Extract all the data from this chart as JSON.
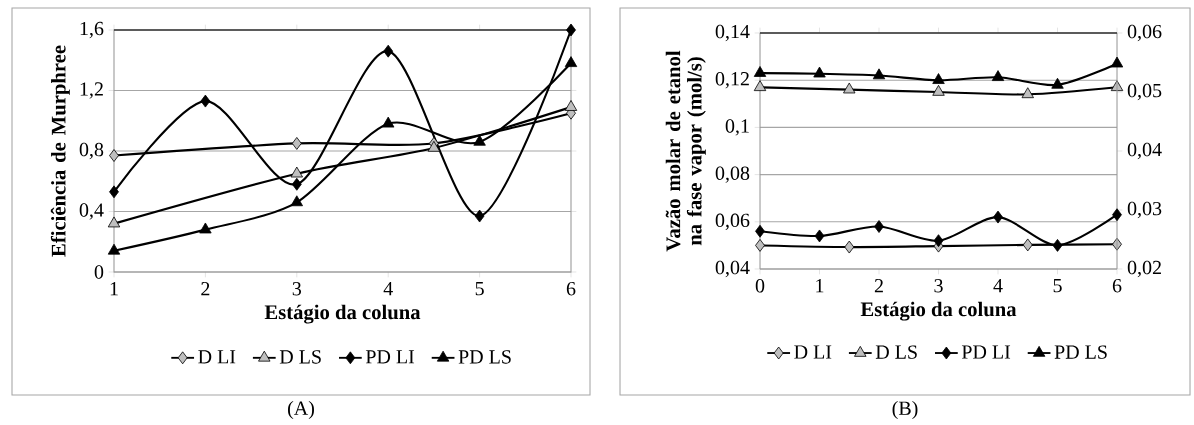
{
  "chart_data": [
    {
      "type": "line",
      "xlabel": "Estágio da coluna",
      "ylabel": "Eficiência de Murphree",
      "xlim": [
        1,
        6
      ],
      "xticks": [
        1,
        2,
        3,
        4,
        5,
        6
      ],
      "ylim": [
        0,
        1.6
      ],
      "yticks": [
        0,
        {
          "value": 0.4,
          "label": "0,4"
        },
        {
          "value": 0.8,
          "label": "0,8"
        },
        {
          "value": 1.2,
          "label": "1,2"
        },
        {
          "value": 1.6,
          "label": "1,6"
        }
      ],
      "grid": "y",
      "legend": "bottom",
      "line_style": "solid",
      "annotations": [
        "(A)"
      ],
      "series": [
        {
          "name": "D LI",
          "color": "#bfbfbf",
          "marker": "diamond",
          "x": [
            1,
            3,
            4.5,
            6
          ],
          "values": [
            0.77,
            0.85,
            0.85,
            1.05
          ]
        },
        {
          "name": "D LS",
          "color": "#bfbfbf",
          "marker": "triangle",
          "x": [
            1,
            3,
            4.5,
            6
          ],
          "values": [
            0.32,
            0.65,
            0.82,
            1.09
          ]
        },
        {
          "name": "PD LI",
          "color": "#000000",
          "marker": "diamond",
          "x": [
            1,
            2,
            3,
            4,
            5,
            6
          ],
          "values": [
            0.53,
            1.13,
            0.58,
            1.46,
            0.37,
            1.6
          ]
        },
        {
          "name": "PD LS",
          "color": "#000000",
          "marker": "triangle",
          "x": [
            1,
            2,
            3,
            4,
            5,
            6
          ],
          "values": [
            0.14,
            0.28,
            0.46,
            0.98,
            0.86,
            1.38
          ]
        }
      ]
    },
    {
      "type": "line",
      "xlabel": "Estágio da coluna",
      "ylabel": "Vazão molar de etanol na fase vapor (mol/s)",
      "xlim": [
        0,
        6
      ],
      "xticks": [
        0,
        1,
        2,
        3,
        4,
        5,
        6
      ],
      "ylim": [
        0.04,
        0.14
      ],
      "yticks": [
        {
          "value": 0.04,
          "label": "0,04"
        },
        {
          "value": 0.06,
          "label": "0,06"
        },
        {
          "value": 0.08,
          "label": "0,08"
        },
        {
          "value": 0.1,
          "label": "0,1"
        },
        {
          "value": 0.12,
          "label": "0,12"
        },
        {
          "value": 0.14,
          "label": "0,14"
        }
      ],
      "y2lim": [
        0.02,
        0.06
      ],
      "y2ticks": [
        {
          "value": 0.02,
          "label": "0,02"
        },
        {
          "value": 0.03,
          "label": "0,03"
        },
        {
          "value": 0.04,
          "label": "0,04"
        },
        {
          "value": 0.05,
          "label": "0,05"
        },
        {
          "value": 0.06,
          "label": "0,06"
        }
      ],
      "grid": "y",
      "legend": "bottom",
      "line_style": "solid",
      "annotations": [
        "(B)"
      ],
      "series": [
        {
          "name": "D LI",
          "color": "#bfbfbf",
          "marker": "diamond",
          "x": [
            0,
            1.5,
            3,
            4.5,
            6
          ],
          "values": [
            0.05,
            0.0493,
            0.0497,
            0.0502,
            0.0505
          ]
        },
        {
          "name": "D LS",
          "color": "#bfbfbf",
          "marker": "triangle",
          "x": [
            0,
            1.5,
            3,
            4.5,
            6
          ],
          "values": [
            0.117,
            0.116,
            0.115,
            0.114,
            0.117
          ]
        },
        {
          "name": "PD LI",
          "color": "#000000",
          "marker": "diamond",
          "axis": "y2",
          "x": [
            0,
            1,
            2,
            3,
            4,
            5,
            6
          ],
          "values": [
            0.0264,
            0.0256,
            0.0272,
            0.0248,
            0.0288,
            0.024,
            0.0292
          ]
        },
        {
          "name": "PD LS",
          "color": "#000000",
          "marker": "triangle",
          "axis": "y2",
          "x": [
            0,
            1,
            2,
            3,
            4,
            5,
            6
          ],
          "values": [
            0.0532,
            0.0531,
            0.0528,
            0.052,
            0.0525,
            0.0512,
            0.0548
          ]
        }
      ]
    }
  ]
}
